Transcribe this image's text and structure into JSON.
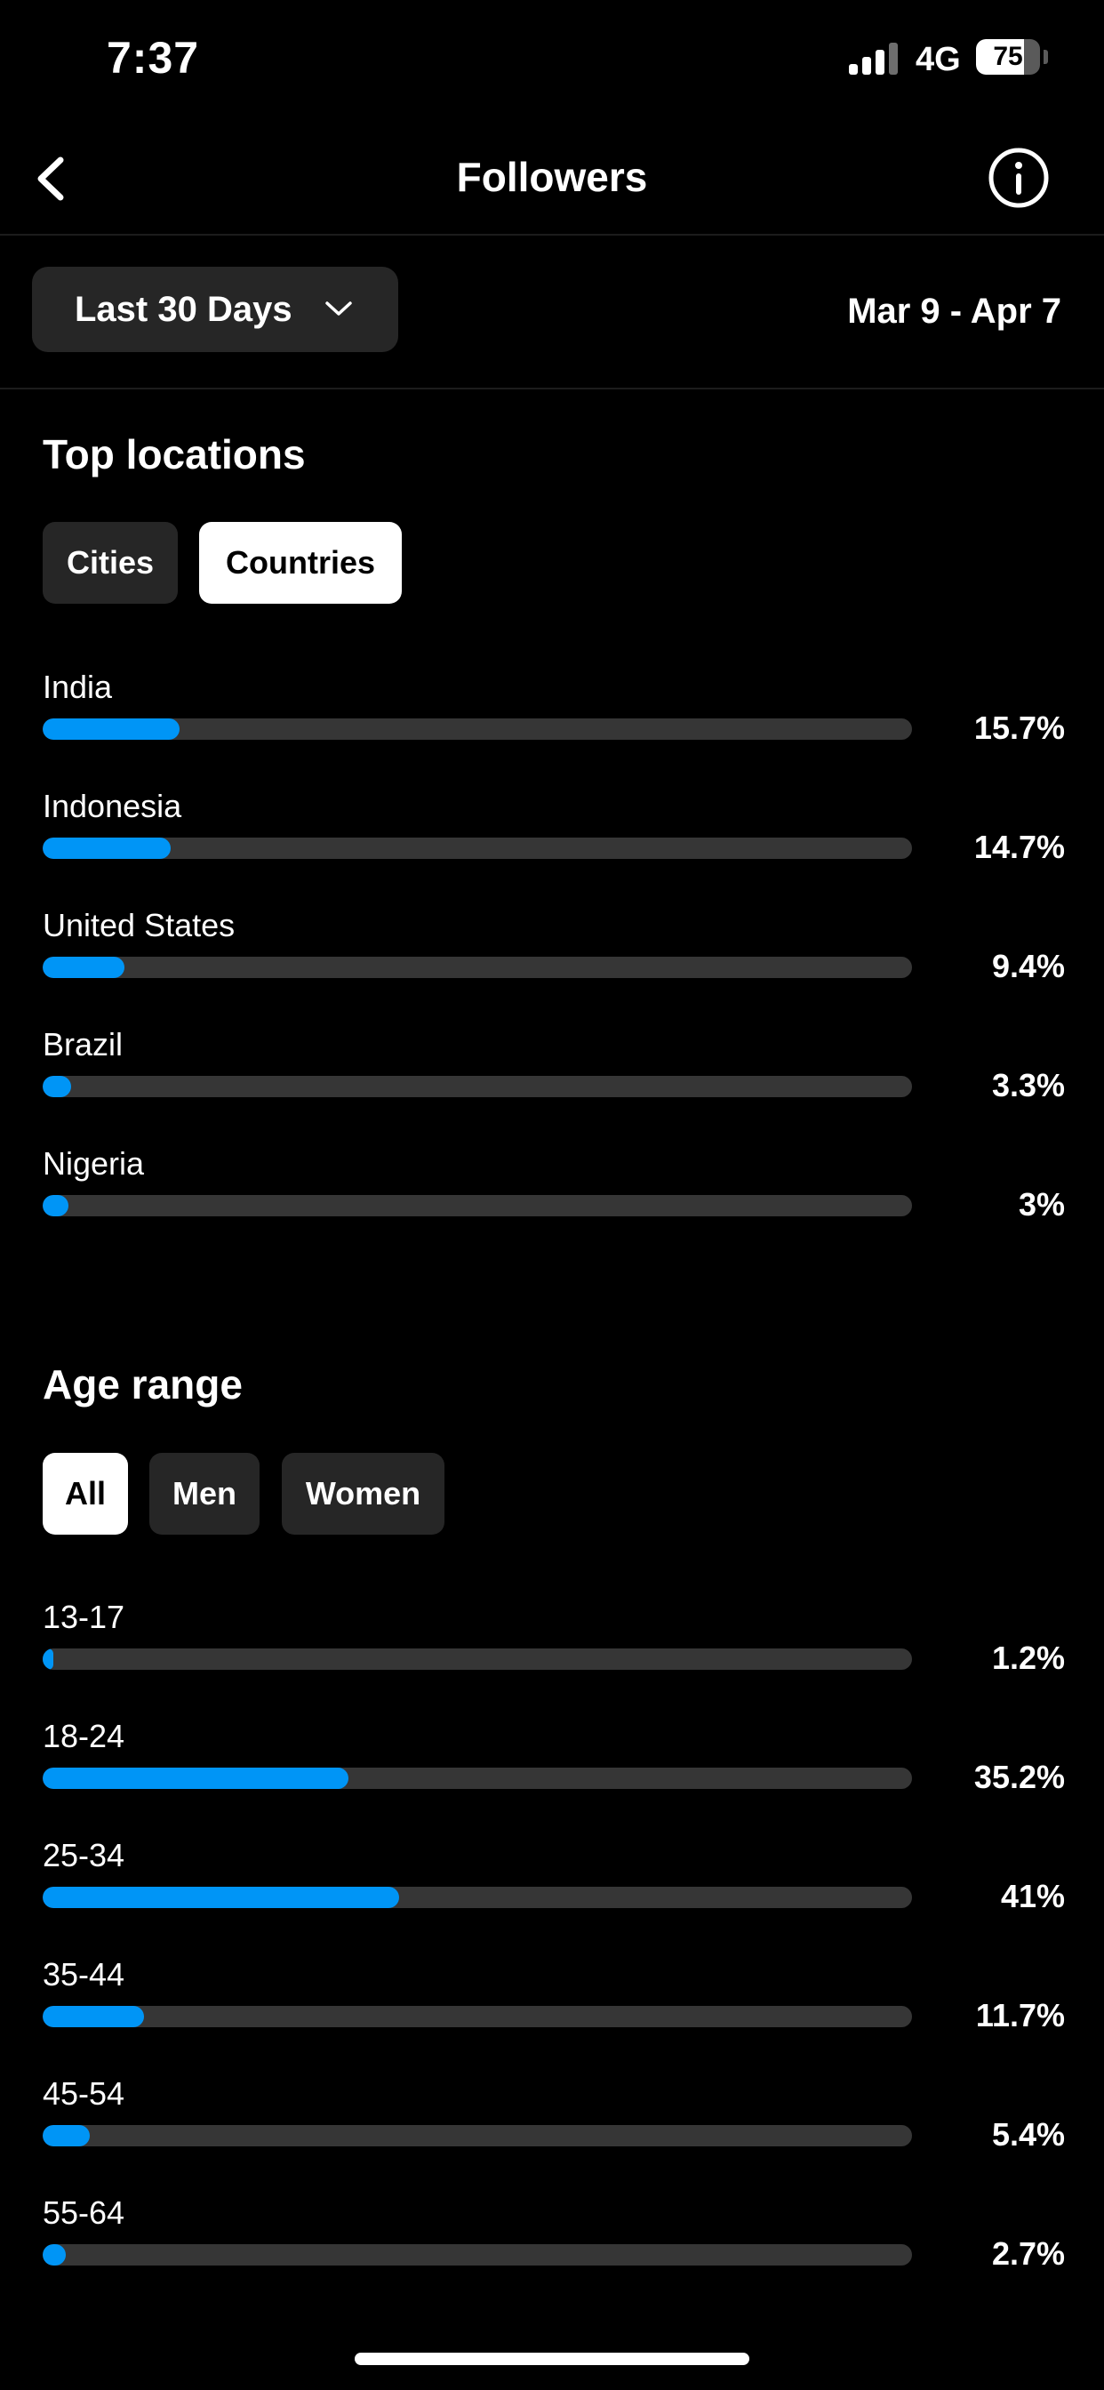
{
  "status_bar": {
    "time": "7:37",
    "network": "4G",
    "battery": "75",
    "battery_level": 0.75
  },
  "nav": {
    "title": "Followers",
    "back_icon": "chevron-left-icon",
    "info_icon": "info-circle-icon"
  },
  "filter": {
    "range_label": "Last 30 Days",
    "date_range": "Mar 9 - Apr 7"
  },
  "top_locations": {
    "title": "Top locations",
    "tabs": [
      {
        "label": "Cities",
        "active": false
      },
      {
        "label": "Countries",
        "active": true
      }
    ],
    "items": [
      {
        "label": "India",
        "value": "15.7%",
        "percent": 15.7
      },
      {
        "label": "Indonesia",
        "value": "14.7%",
        "percent": 14.7
      },
      {
        "label": "United States",
        "value": "9.4%",
        "percent": 9.4
      },
      {
        "label": "Brazil",
        "value": "3.3%",
        "percent": 3.3
      },
      {
        "label": "Nigeria",
        "value": "3%",
        "percent": 3
      }
    ]
  },
  "age_range": {
    "title": "Age range",
    "tabs": [
      {
        "label": "All",
        "active": true
      },
      {
        "label": "Men",
        "active": false
      },
      {
        "label": "Women",
        "active": false
      }
    ],
    "items": [
      {
        "label": "13-17",
        "value": "1.2%",
        "percent": 1.2
      },
      {
        "label": "18-24",
        "value": "35.2%",
        "percent": 35.2
      },
      {
        "label": "25-34",
        "value": "41%",
        "percent": 41
      },
      {
        "label": "35-44",
        "value": "11.7%",
        "percent": 11.7
      },
      {
        "label": "45-54",
        "value": "5.4%",
        "percent": 5.4
      },
      {
        "label": "55-64",
        "value": "2.7%",
        "percent": 2.7
      }
    ]
  },
  "colors": {
    "accent": "#0095f6",
    "track": "#363636",
    "chip": "#262626",
    "background": "#000000"
  }
}
